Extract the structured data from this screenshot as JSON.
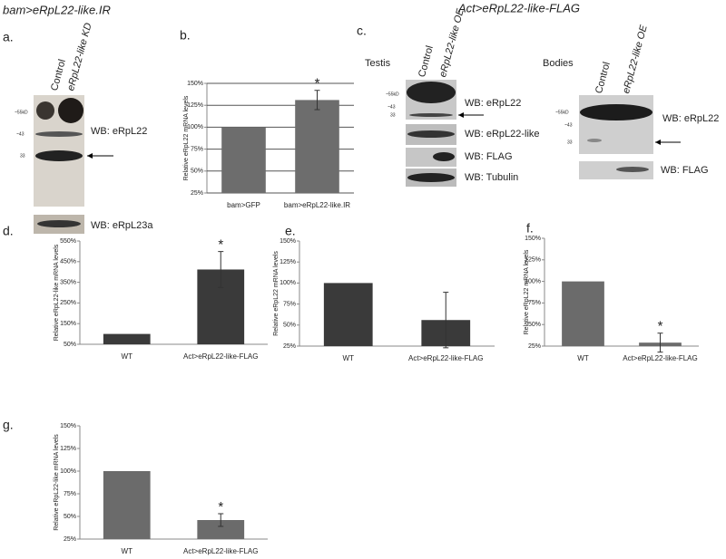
{
  "figure": {
    "headers": [
      "bam>eRpL22-like.IR",
      "Act>eRpL22-like-FLAG"
    ],
    "panel_labels": [
      "a.",
      "b.",
      "c.",
      "d.",
      "e.",
      "f.",
      "g."
    ],
    "blot_a": {
      "lanes": [
        "Control",
        "eRpL22-like KD"
      ],
      "markers": [
        "~55kD",
        "~43",
        "33"
      ],
      "wb": [
        "WB: eRpL22",
        "WB: eRpL23a"
      ]
    },
    "blot_testis": {
      "tissue": "Testis",
      "lanes": [
        "Control",
        "eRpL22-like OE"
      ],
      "markers": [
        "~55kD",
        "~43",
        "33"
      ],
      "wb": [
        "WB: eRpL22",
        "WB: eRpL22-like",
        "WB: FLAG",
        "WB: Tubulin"
      ]
    },
    "blot_bodies": {
      "tissue": "Bodies",
      "lanes": [
        "Control",
        "eRpL22-like OE"
      ],
      "markers": [
        "~55kD",
        "~43",
        "33"
      ],
      "wb": [
        "WB: eRpL22",
        "WB: FLAG"
      ]
    }
  },
  "chart_data": [
    {
      "type": "bar",
      "ylabel": "Relative eRpL22 mRNA levels",
      "categories": [
        "bam>GFP",
        "bam>eRpL22-like.IR"
      ],
      "values": [
        100,
        131
      ],
      "errors": [
        null,
        11
      ],
      "annotation": "*",
      "color": "#6d6d6d",
      "grid": true,
      "ylim": [
        25,
        150
      ],
      "yticks": [
        {
          "value": 25,
          "label": "25%"
        },
        {
          "value": 50,
          "label": "50%"
        },
        {
          "value": 75,
          "label": "75%"
        },
        {
          "value": 100,
          "label": "100%"
        },
        {
          "value": 125,
          "label": "125%"
        },
        {
          "value": 150,
          "label": "150%"
        }
      ]
    },
    {
      "type": "bar",
      "ylabel": "Relative eRpL22-like mRNA levels",
      "categories": [
        "WT",
        "Act>eRpL22-like-FLAG"
      ],
      "values": [
        100,
        412
      ],
      "errors": [
        null,
        87
      ],
      "annotation": "*",
      "color": "#3a3a3a",
      "grid": false,
      "ylim": [
        50,
        550
      ],
      "yticks": [
        {
          "value": 50,
          "label": "50%"
        },
        {
          "value": 150,
          "label": "150%"
        },
        {
          "value": 250,
          "label": "250%"
        },
        {
          "value": 350,
          "label": "350%"
        },
        {
          "value": 450,
          "label": "450%"
        },
        {
          "value": 550,
          "label": "550%"
        }
      ]
    },
    {
      "type": "bar",
      "ylabel": "Relative eRpL22 mRNA levels",
      "categories": [
        "WT",
        "Act>eRpL22-like-FLAG"
      ],
      "values": [
        100,
        56
      ],
      "errors": [
        null,
        33
      ],
      "color": "#3a3a3a",
      "grid": false,
      "ylim": [
        25,
        150
      ],
      "yticks": [
        {
          "value": 25,
          "label": "25%"
        },
        {
          "value": 50,
          "label": "50%"
        },
        {
          "value": 75,
          "label": "75%"
        },
        {
          "value": 100,
          "label": "100%"
        },
        {
          "value": 125,
          "label": "125%"
        },
        {
          "value": 150,
          "label": "150%"
        }
      ]
    },
    {
      "type": "bar",
      "ylabel": "Relative eRpL22 mRNA levels",
      "categories": [
        "WT",
        "Act>eRpL22-like-FLAG"
      ],
      "values": [
        100,
        29
      ],
      "errors": [
        null,
        11
      ],
      "annotation": "*",
      "color": "#6b6b6b",
      "grid": false,
      "ylim": [
        25,
        150
      ],
      "yticks": [
        {
          "value": 25,
          "label": "25%"
        },
        {
          "value": 50,
          "label": "50%"
        },
        {
          "value": 75,
          "label": "75%"
        },
        {
          "value": 100,
          "label": "100%"
        },
        {
          "value": 125,
          "label": "125%"
        },
        {
          "value": 150,
          "label": "150%"
        }
      ]
    },
    {
      "type": "bar",
      "ylabel": "Relative eRpL22-like mRNA levels",
      "categories": [
        "WT",
        "Act>eRpL22-like-FLAG"
      ],
      "values": [
        100,
        46
      ],
      "errors": [
        null,
        7
      ],
      "annotation": "*",
      "color": "#6b6b6b",
      "grid": false,
      "ylim": [
        25,
        150
      ],
      "yticks": [
        {
          "value": 25,
          "label": "25%"
        },
        {
          "value": 50,
          "label": "50%"
        },
        {
          "value": 75,
          "label": "75%"
        },
        {
          "value": 100,
          "label": "100%"
        },
        {
          "value": 125,
          "label": "125%"
        },
        {
          "value": 150,
          "label": "150%"
        }
      ]
    }
  ]
}
